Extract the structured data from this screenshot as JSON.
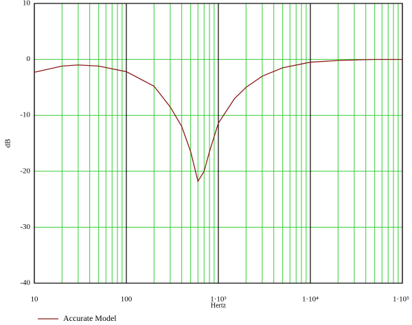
{
  "chart_data": {
    "type": "line",
    "xlabel": "Hertz",
    "ylabel": "dB",
    "x": [
      10,
      20,
      30,
      50,
      100,
      200,
      300,
      400,
      500,
      600,
      700,
      800,
      1000,
      1500,
      2000,
      3000,
      5000,
      10000,
      20000,
      50000,
      100000
    ],
    "series": [
      {
        "name": "Accurate Model",
        "color": "#8b1a1a",
        "values": [
          -2.3,
          -1.2,
          -1.0,
          -1.2,
          -2.2,
          -4.8,
          -8.5,
          -12,
          -16.5,
          -21.8,
          -20,
          -16.5,
          -11.4,
          -7,
          -5,
          -3,
          -1.5,
          -0.5,
          -0.2,
          0,
          0
        ]
      }
    ],
    "xlim": [
      10,
      100000
    ],
    "xscale": "log",
    "xticks": [
      10,
      100,
      {
        "value": 1000,
        "label": "1·10³"
      },
      {
        "value": 10000,
        "label": "1·10⁴"
      },
      {
        "value": 100000,
        "label": "1·10⁵"
      }
    ],
    "ylim": [
      -40,
      10
    ],
    "yticks": [
      -40,
      -30,
      -20,
      -10,
      0,
      10
    ],
    "grid": true,
    "grid_color": "#33cc33",
    "legend": "lower left"
  }
}
